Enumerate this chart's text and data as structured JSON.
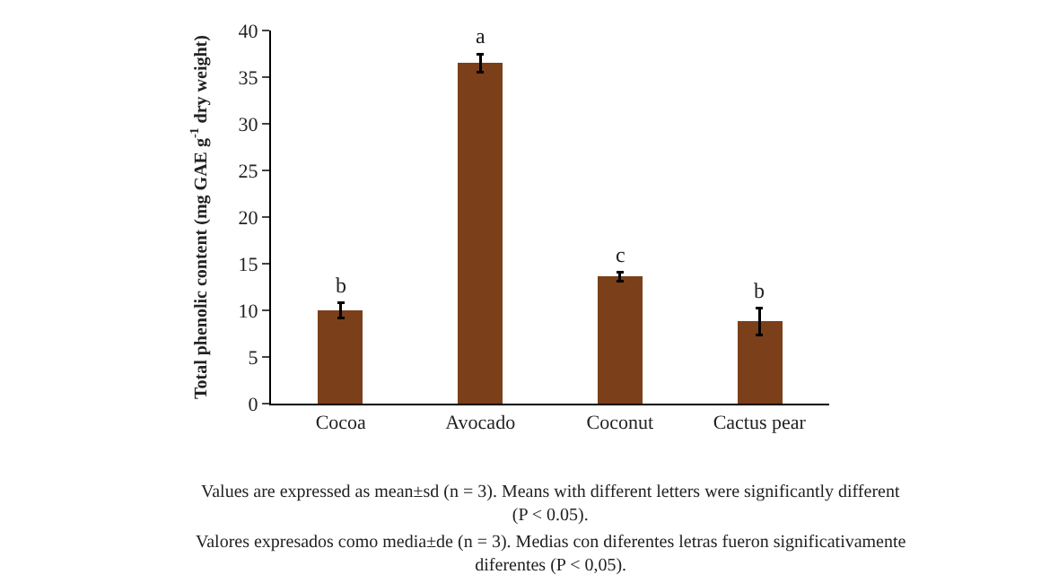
{
  "chart_data": {
    "type": "bar",
    "ylabel": "Total phenolic content (mg GAE g$^{-1}$ dry weight)",
    "categories": [
      "Cocoa",
      "Avocado",
      "Coconut",
      "Cactus pear"
    ],
    "values": [
      10.0,
      36.5,
      13.6,
      8.8
    ],
    "errors": [
      0.8,
      1.0,
      0.5,
      1.4
    ],
    "color": "#7b3f1a",
    "ylim": [
      0,
      40
    ],
    "yticks": [
      0,
      5,
      10,
      15,
      20,
      25,
      30,
      35,
      40
    ],
    "annotations": [
      {
        "text": "b",
        "x": "Cocoa",
        "y": 10.8
      },
      {
        "text": "a",
        "x": "Avocado",
        "y": 37.5
      },
      {
        "text": "c",
        "x": "Coconut",
        "y": 14.1
      },
      {
        "text": "b",
        "x": "Cactus pear",
        "y": 10.2
      },
      "Values are expressed as mean±sd (n = 3). Means with different letters were significantly different (P < 0.05).",
      "Valores expresados como media±de (n = 3). Medias con diferentes letras fueron significativamente diferentes (P < 0,05)."
    ]
  }
}
